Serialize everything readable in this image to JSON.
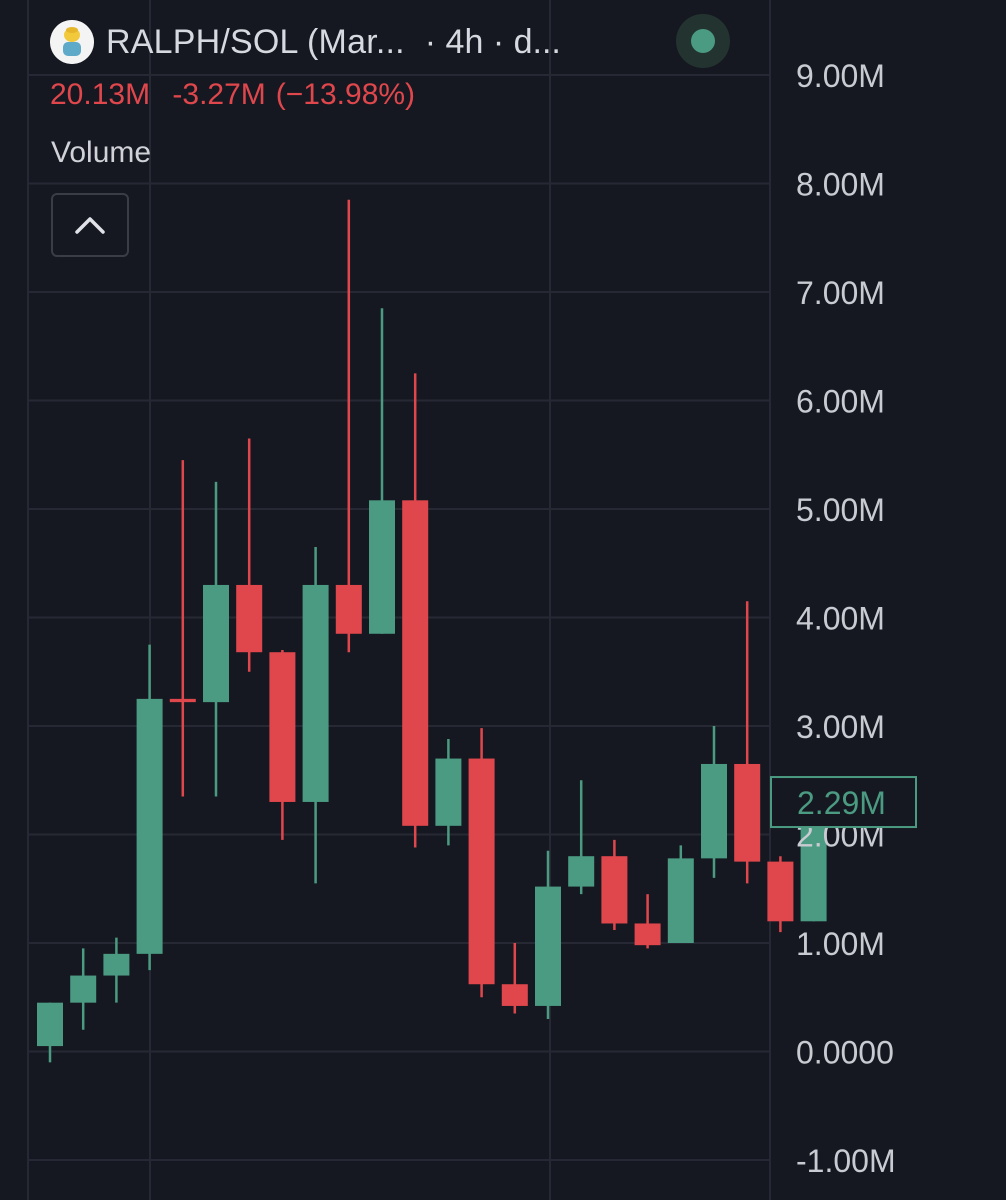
{
  "header": {
    "pair_title": "RALPH/SOL (Mar...",
    "interval_suffix": "· 4h · d...",
    "logo_icon": "ralph-avatar-icon",
    "live_icon": "live-status-dot-icon"
  },
  "ohlc": {
    "value": "20.13M",
    "change": "-3.27M",
    "change_pct": "(−13.98%)"
  },
  "study": {
    "label": "Volume",
    "collapse_icon": "chevron-up-icon"
  },
  "colors": {
    "background": "#161821",
    "grid": "#262833",
    "up": "#4a9b81",
    "down": "#e0474c",
    "axis_text": "#c9cbd2",
    "header_text": "#d7d9e0"
  },
  "chart_data": {
    "type": "candlestick",
    "ylim": [
      -1.0,
      9.0
    ],
    "y_unit": "M",
    "y_ticks": [
      {
        "value": 9,
        "label": "9.00M"
      },
      {
        "value": 8,
        "label": "8.00M"
      },
      {
        "value": 7,
        "label": "7.00M"
      },
      {
        "value": 6,
        "label": "6.00M"
      },
      {
        "value": 5,
        "label": "5.00M"
      },
      {
        "value": 4,
        "label": "4.00M"
      },
      {
        "value": 3,
        "label": "3.00M"
      },
      {
        "value": 2,
        "label": "2.00M"
      },
      {
        "value": 1,
        "label": "1.00M"
      },
      {
        "value": 0,
        "label": "0.0000"
      },
      {
        "value": -1,
        "label": "-1.00M"
      }
    ],
    "last_price": {
      "value": 2.29,
      "label": "2.29M"
    },
    "grid": true,
    "candles": [
      {
        "open": 0.05,
        "high": 0.45,
        "low": -0.1,
        "close": 0.45
      },
      {
        "open": 0.45,
        "high": 0.95,
        "low": 0.2,
        "close": 0.7
      },
      {
        "open": 0.7,
        "high": 1.05,
        "low": 0.45,
        "close": 0.9
      },
      {
        "open": 0.9,
        "high": 3.75,
        "low": 0.75,
        "close": 3.25
      },
      {
        "open": 3.25,
        "high": 5.45,
        "low": 2.35,
        "close": 3.22
      },
      {
        "open": 3.22,
        "high": 5.25,
        "low": 2.35,
        "close": 4.3
      },
      {
        "open": 4.3,
        "high": 5.65,
        "low": 3.5,
        "close": 3.68
      },
      {
        "open": 3.68,
        "high": 3.7,
        "low": 1.95,
        "close": 2.3
      },
      {
        "open": 2.3,
        "high": 4.65,
        "low": 1.55,
        "close": 4.3
      },
      {
        "open": 4.3,
        "high": 7.85,
        "low": 3.68,
        "close": 3.85
      },
      {
        "open": 3.85,
        "high": 6.85,
        "low": 3.85,
        "close": 5.08
      },
      {
        "open": 5.08,
        "high": 6.25,
        "low": 1.88,
        "close": 2.08
      },
      {
        "open": 2.08,
        "high": 2.88,
        "low": 1.9,
        "close": 2.7
      },
      {
        "open": 2.7,
        "high": 2.98,
        "low": 0.5,
        "close": 0.62
      },
      {
        "open": 0.62,
        "high": 1.0,
        "low": 0.35,
        "close": 0.42
      },
      {
        "open": 0.42,
        "high": 1.85,
        "low": 0.3,
        "close": 1.52
      },
      {
        "open": 1.52,
        "high": 2.5,
        "low": 1.45,
        "close": 1.8
      },
      {
        "open": 1.8,
        "high": 1.95,
        "low": 1.12,
        "close": 1.18
      },
      {
        "open": 1.18,
        "high": 1.45,
        "low": 0.95,
        "close": 0.98
      },
      {
        "open": 1.0,
        "high": 1.9,
        "low": 1.0,
        "close": 1.78
      },
      {
        "open": 1.78,
        "high": 3.0,
        "low": 1.6,
        "close": 2.65
      },
      {
        "open": 2.65,
        "high": 4.15,
        "low": 1.55,
        "close": 1.75
      },
      {
        "open": 1.75,
        "high": 1.8,
        "low": 1.1,
        "close": 1.2
      },
      {
        "open": 1.2,
        "high": 2.3,
        "low": 1.2,
        "close": 2.29
      }
    ]
  }
}
